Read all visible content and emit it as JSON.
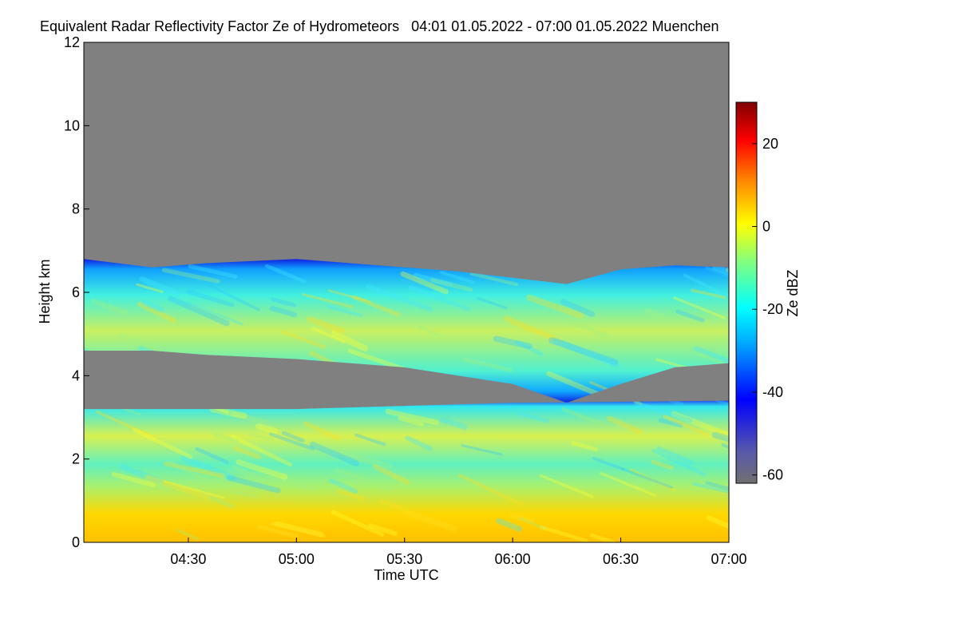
{
  "chart_data": {
    "type": "heatmap",
    "title": "Equivalent Radar Reflectivity Factor Ze of Hydrometeors   04:01 01.05.2022 - 07:00 01.05.2022 Muenchen",
    "xlabel": "Time UTC",
    "ylabel": "Height km",
    "colorbar_label": "Ze dBZ",
    "xlim_minutes": [
      241,
      420
    ],
    "ylim": [
      0,
      12
    ],
    "clim": [
      -62,
      30
    ],
    "x_ticks": [
      {
        "minutes": 270,
        "label": "04:30"
      },
      {
        "minutes": 300,
        "label": "05:00"
      },
      {
        "minutes": 330,
        "label": "05:30"
      },
      {
        "minutes": 360,
        "label": "06:00"
      },
      {
        "minutes": 390,
        "label": "06:30"
      },
      {
        "minutes": 420,
        "label": "07:00"
      }
    ],
    "y_ticks": [
      0,
      2,
      4,
      6,
      8,
      10,
      12
    ],
    "colorbar_ticks": [
      20,
      0,
      -20,
      -40,
      -60
    ],
    "no_signal_color": "#808080",
    "layers": [
      {
        "name": "upper-cloud-layer",
        "time_minutes": [
          241,
          260,
          275,
          300,
          330,
          345,
          360,
          375,
          390,
          405,
          420
        ],
        "top_km": [
          6.8,
          6.6,
          6.7,
          6.8,
          6.6,
          6.5,
          6.35,
          6.2,
          6.55,
          6.65,
          6.6
        ],
        "base_km": [
          4.6,
          4.6,
          4.5,
          4.4,
          4.2,
          4.0,
          3.8,
          3.35,
          3.8,
          4.2,
          4.3
        ],
        "ze_typical_dbz": -10
      },
      {
        "name": "lower-precipitation-layer",
        "time_minutes": [
          241,
          300,
          360,
          420
        ],
        "top_km": [
          3.2,
          3.2,
          3.35,
          3.4
        ],
        "base_km": [
          0,
          0,
          0,
          0
        ],
        "ze_typical_dbz": -5,
        "ze_near_ground_dbz": 2
      }
    ]
  }
}
